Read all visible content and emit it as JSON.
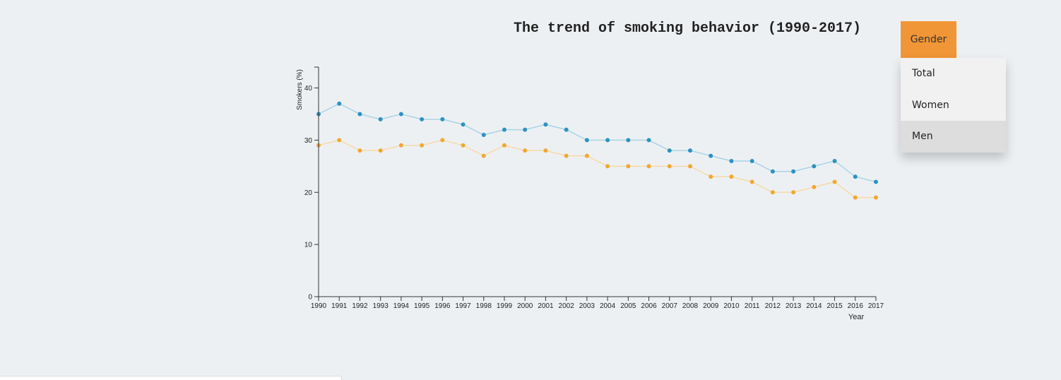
{
  "chart_data": {
    "type": "line",
    "title": "The trend of smoking behavior (1990-2017)",
    "xlabel": "Year",
    "ylabel": "Smokers (%)",
    "ylim": [
      0,
      44
    ],
    "yticks": [
      0,
      10,
      20,
      30,
      40
    ],
    "x": [
      "1990",
      "1991",
      "1992",
      "1993",
      "1994",
      "1995",
      "1996",
      "1997",
      "1998",
      "1999",
      "2000",
      "2001",
      "2002",
      "2003",
      "2004",
      "2005",
      "2006",
      "2007",
      "2008",
      "2009",
      "2010",
      "2011",
      "2012",
      "2013",
      "2014",
      "2015",
      "2016",
      "2017"
    ],
    "series": [
      {
        "color": "#2b93bf",
        "line_color": "#a8d4e6",
        "values": [
          35,
          37,
          35,
          34,
          35,
          34,
          34,
          33,
          31,
          32,
          32,
          33,
          32,
          30,
          30,
          30,
          30,
          28,
          28,
          27,
          26,
          26,
          24,
          24,
          25,
          26,
          23,
          22
        ]
      },
      {
        "color": "#f0a830",
        "line_color": "#f7d9a6",
        "values": [
          29,
          30,
          28,
          28,
          29,
          29,
          30,
          29,
          27,
          29,
          28,
          28,
          27,
          27,
          25,
          25,
          25,
          25,
          25,
          23,
          23,
          22,
          20,
          20,
          21,
          22,
          19,
          19
        ]
      }
    ],
    "grid": false
  },
  "dropdown": {
    "button_label": "Gender",
    "items": [
      "Total",
      "Women",
      "Men"
    ],
    "active_item": "Men",
    "accent": "#f19636"
  }
}
